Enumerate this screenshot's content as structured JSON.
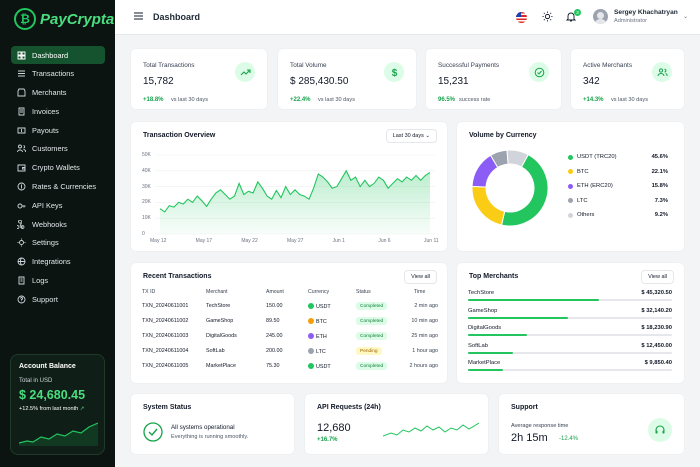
{
  "brand": {
    "name": "PayCrypta",
    "mark": "₿"
  },
  "nav": [
    {
      "label": "Dashboard",
      "icon": "grid-icon",
      "active": true
    },
    {
      "label": "Transactions",
      "icon": "list-icon"
    },
    {
      "label": "Merchants",
      "icon": "store-icon"
    },
    {
      "label": "Invoices",
      "icon": "invoice-icon"
    },
    {
      "label": "Payouts",
      "icon": "payout-icon"
    },
    {
      "label": "Customers",
      "icon": "users-icon"
    },
    {
      "label": "Crypto Wallets",
      "icon": "wallet-icon"
    },
    {
      "label": "Rates & Currencies",
      "icon": "rates-icon"
    },
    {
      "label": "API Keys",
      "icon": "key-icon"
    },
    {
      "label": "Webhooks",
      "icon": "webhook-icon"
    },
    {
      "label": "Settings",
      "icon": "gear-icon"
    },
    {
      "label": "Integrations",
      "icon": "integrations-icon"
    },
    {
      "label": "Logs",
      "icon": "logs-icon"
    },
    {
      "label": "Support",
      "icon": "help-icon"
    }
  ],
  "balance": {
    "title": "Account Balance",
    "label": "Total in USD",
    "value": "$ 24,680.45",
    "change": "+12.5% from last month"
  },
  "header": {
    "title": "Dashboard",
    "user_name": "Sergey Khachatryan",
    "user_role": "Administrator",
    "notifications": "3"
  },
  "stats": [
    {
      "label": "Total Transactions",
      "value": "15,782",
      "change": "+18.8%",
      "note": "vs last 30 days",
      "icon": "trend-icon"
    },
    {
      "label": "Total Volume",
      "value": "$ 285,430.50",
      "change": "+22.4%",
      "note": "vs last 30 days",
      "icon": "dollar-icon"
    },
    {
      "label": "Successful Payments",
      "value": "15,231",
      "change": "96.5%",
      "note": "success rate",
      "icon": "check-circle-icon"
    },
    {
      "label": "Active Merchants",
      "value": "342",
      "change": "+14.3%",
      "note": "vs last 30 days",
      "icon": "users-icon"
    }
  ],
  "overview": {
    "title": "Transaction Overview",
    "range": "Last 30 days"
  },
  "chart_data": [
    {
      "type": "area",
      "title": "Transaction Overview",
      "y_ticks": [
        "50K",
        "40K",
        "30K",
        "20K",
        "10K",
        "0"
      ],
      "ylim": [
        0,
        50000
      ],
      "x_ticks": [
        "May 12",
        "May 17",
        "May 22",
        "May 27",
        "Jun 1",
        "Jun 6",
        "Jun 11"
      ],
      "values": [
        16000,
        14000,
        18000,
        17000,
        20000,
        19000,
        22000,
        20000,
        24000,
        21000,
        17500,
        22000,
        26000,
        28000,
        25000,
        22000,
        24000,
        32000,
        25000,
        27000,
        26000,
        33000,
        29000,
        24000,
        22000,
        27500,
        23000,
        30000,
        25000,
        28000,
        25000,
        24000,
        22000,
        29000,
        38000,
        36000,
        33000,
        29000,
        30000,
        35000,
        40000,
        34000,
        36000,
        30000,
        34000,
        30000,
        32000,
        36000,
        34000,
        29000,
        32000,
        35000,
        33000,
        36000,
        34000,
        37000,
        34000,
        37000,
        39000
      ]
    },
    {
      "type": "pie",
      "title": "Volume by Currency",
      "categories": [
        "USDT (TRC20)",
        "BTC",
        "ETH (ERC20)",
        "LTC",
        "Others"
      ],
      "values": [
        45.6,
        22.1,
        15.8,
        7.3,
        9.2
      ],
      "labels": [
        "45.6%",
        "22.1%",
        "15.8%",
        "7.3%",
        "9.2%"
      ],
      "colors": [
        "#22c55e",
        "#facc15",
        "#8b5cf6",
        "#9ca3af",
        "#d1d5db"
      ]
    }
  ],
  "currency": {
    "title": "Volume by Currency"
  },
  "recent": {
    "title": "Recent Transactions",
    "view_all": "View all",
    "headers": [
      "TX ID",
      "Merchant",
      "Amount",
      "Currency",
      "Status",
      "Time"
    ],
    "rows": [
      {
        "id": "TXN_20240611001",
        "merchant": "TechStore",
        "amount": "150.00",
        "currency": "USDT",
        "cur_color": "#22c55e",
        "status": "Completed",
        "time": "2 min ago"
      },
      {
        "id": "TXN_20240611002",
        "merchant": "GameShop",
        "amount": "89.50",
        "currency": "BTC",
        "cur_color": "#f59e0b",
        "status": "Completed",
        "time": "10 min ago"
      },
      {
        "id": "TXN_20240611003",
        "merchant": "DigitalGoods",
        "amount": "245.00",
        "currency": "ETH",
        "cur_color": "#8b5cf6",
        "status": "Completed",
        "time": "25 min ago"
      },
      {
        "id": "TXN_20240611004",
        "merchant": "SoftLab",
        "amount": "200.00",
        "currency": "LTC",
        "cur_color": "#9ca3af",
        "status": "Pending",
        "time": "1 hour ago"
      },
      {
        "id": "TXN_20240611005",
        "merchant": "MarketPlace",
        "amount": "75.30",
        "currency": "USDT",
        "cur_color": "#22c55e",
        "status": "Completed",
        "time": "2 hours ago"
      }
    ]
  },
  "merchants": {
    "title": "Top Merchants",
    "view_all": "View all",
    "rows": [
      {
        "name": "TechStore",
        "amount": "$ 45,320.50",
        "share": 0.64
      },
      {
        "name": "GameShop",
        "amount": "$ 32,140.20",
        "share": 0.49
      },
      {
        "name": "DigitalGoods",
        "amount": "$ 18,230.90",
        "share": 0.29
      },
      {
        "name": "SoftLab",
        "amount": "$ 12,450.00",
        "share": 0.22
      },
      {
        "name": "MarketPlace",
        "amount": "$ 9,850.40",
        "share": 0.17
      }
    ]
  },
  "system": {
    "title": "System Status",
    "status": "All systems operational",
    "detail": "Everything is running smoothly."
  },
  "api": {
    "title": "API Requests (24h)",
    "value": "12,680",
    "change": "+16.7%"
  },
  "support": {
    "title": "Support",
    "label": "Average response time",
    "value": "2h 15m",
    "change": "-12.4%"
  }
}
